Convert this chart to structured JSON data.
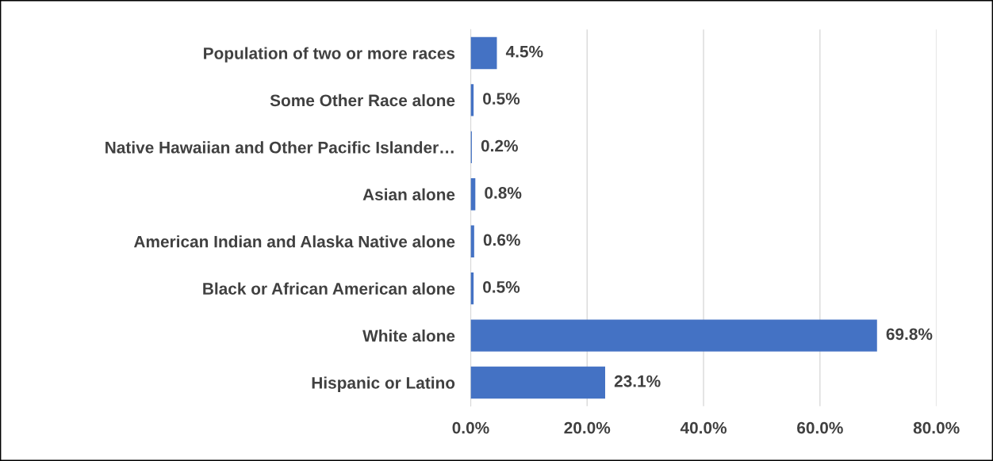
{
  "chart_data": {
    "type": "bar",
    "orientation": "horizontal",
    "categories": [
      "Population of two or more races",
      "Some Other Race alone",
      "Native Hawaiian and Other Pacific Islander…",
      "Asian alone",
      "American Indian and Alaska Native alone",
      "Black or African American alone",
      "White alone",
      "Hispanic or Latino"
    ],
    "values": [
      4.5,
      0.5,
      0.2,
      0.8,
      0.6,
      0.5,
      69.8,
      23.1
    ],
    "value_labels": [
      "4.5%",
      "0.5%",
      "0.2%",
      "0.8%",
      "0.6%",
      "0.5%",
      "69.8%",
      "23.1%"
    ],
    "color": "#4472c4",
    "xlim": [
      0,
      80
    ],
    "xticks": [
      {
        "value": 0,
        "label": "0.0%"
      },
      {
        "value": 20,
        "label": "20.0%"
      },
      {
        "value": 40,
        "label": "40.0%"
      },
      {
        "value": 60,
        "label": "60.0%"
      },
      {
        "value": 80,
        "label": "80.0%"
      }
    ],
    "grid": "x"
  }
}
